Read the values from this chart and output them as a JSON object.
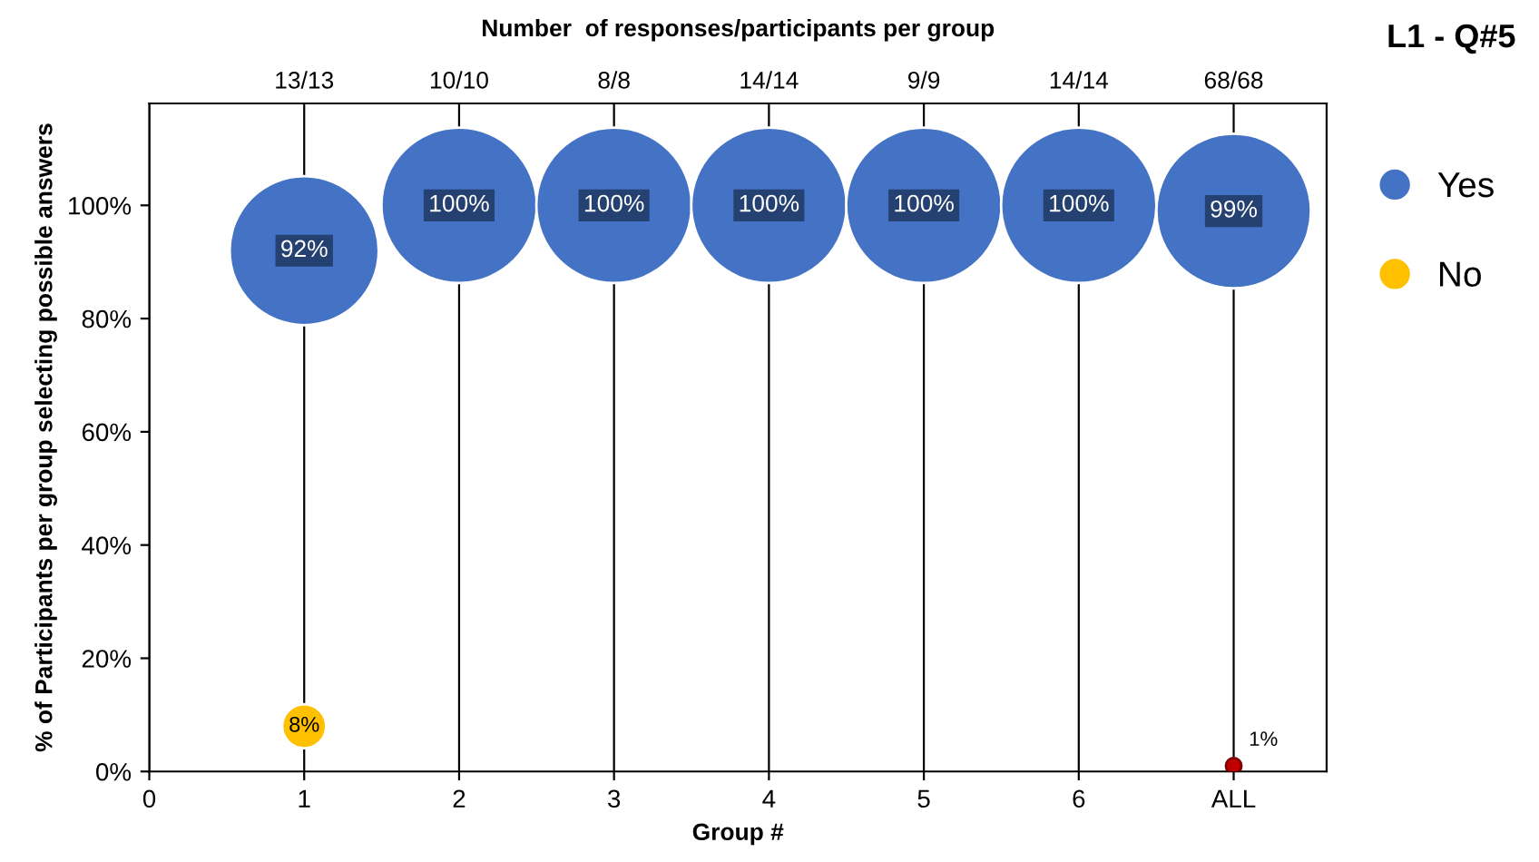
{
  "chart_data": {
    "type": "bubble",
    "title": "L1 - Q#5",
    "xlabel": "Group #",
    "ylabel": "% of Participants per group selecting possible answers",
    "x2label": "Number  of responses/participants per group",
    "x": [
      1,
      2,
      3,
      4,
      5,
      6,
      7
    ],
    "series": [
      {
        "name": "Yes",
        "color": "#4472c4",
        "values": [
          92,
          100,
          100,
          100,
          100,
          100,
          99
        ],
        "sizes": [
          0.92,
          1,
          1,
          1,
          1,
          1,
          0.99
        ],
        "value_labels": [
          "92%",
          "100%",
          "100%",
          "100%",
          "100%",
          "100%",
          "99%"
        ]
      },
      {
        "name": "No",
        "color": "#ffc000",
        "colors": [
          "#ffc000",
          null,
          null,
          null,
          null,
          null,
          "#c00000"
        ],
        "values": [
          8,
          null,
          null,
          null,
          null,
          null,
          1
        ],
        "sizes": [
          0.08,
          null,
          null,
          null,
          null,
          null,
          0.01
        ],
        "value_labels": [
          "8%",
          null,
          null,
          null,
          null,
          null,
          "1%"
        ]
      }
    ],
    "xlim": [
      0,
      7.6
    ],
    "xticks": [
      0,
      1,
      2,
      3,
      4,
      5,
      6,
      {
        "value": 7,
        "label": "ALL"
      }
    ],
    "annotations": [
      "13/13",
      "10/10",
      "8/8",
      "14/14",
      "9/9",
      "14/14",
      "68/68"
    ],
    "ylim": [
      0,
      118
    ],
    "yticks": [
      {
        "value": 0,
        "label": "0%"
      },
      {
        "value": 20,
        "label": "20%"
      },
      {
        "value": 40,
        "label": "40%"
      },
      {
        "value": 60,
        "label": "60%"
      },
      {
        "value": 80,
        "label": "80%"
      },
      {
        "value": 100,
        "label": "100%"
      }
    ],
    "grid": "x",
    "legend": "right",
    "marker": "circle"
  }
}
